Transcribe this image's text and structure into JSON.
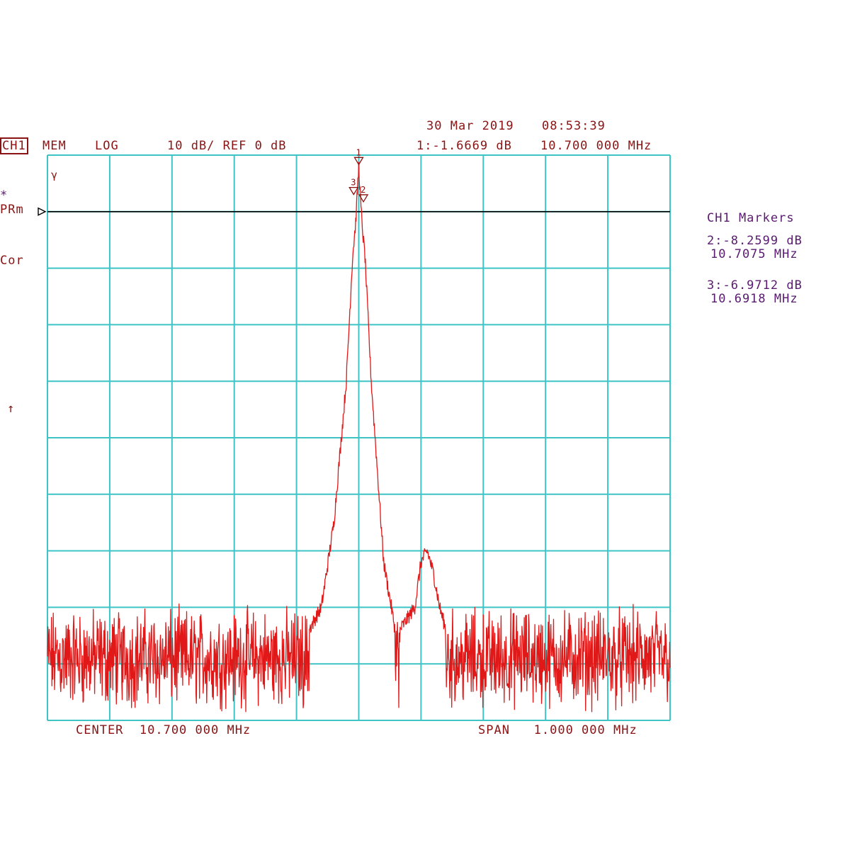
{
  "header": {
    "date": "30 Mar 2019",
    "time": "08:53:39",
    "channel": "CH1",
    "mode": "MEM",
    "scale_type": "LOG",
    "scale": "10 dB/ REF 0 dB",
    "marker1_readout": "1:-1.6669 dB",
    "marker1_freq": "10.700 000 MHz"
  },
  "side_left": {
    "asterisk": "*",
    "prm": "PRm",
    "cor": "Cor",
    "arrow": "↑",
    "gamma": "γ"
  },
  "markers_panel": {
    "title": "CH1 Markers",
    "m2_value": "2:-8.2599 dB",
    "m2_freq": "10.7075 MHz",
    "m3_value": "3:-6.9712 dB",
    "m3_freq": "10.6918 MHz"
  },
  "footer": {
    "center": "CENTER  10.700 000 MHz",
    "span": "SPAN   1.000 000 MHz"
  },
  "colors": {
    "grid": "#3ec4c4",
    "trace": "#e01818",
    "trace_dark": "#8a1010",
    "ref_line": "#000000",
    "text_dark": "#8a1414",
    "text_purple": "#5a1a70"
  },
  "chart_data": {
    "type": "line",
    "x_unit": "MHz",
    "y_unit": "dB",
    "xlim": [
      10.2,
      11.2
    ],
    "ylim": [
      -100,
      0
    ],
    "reference_level_db": 0,
    "scale_db_per_div": 10,
    "divisions": {
      "x": 10,
      "y": 10
    },
    "grid": true,
    "reference_line_db": -10,
    "noise_floor_db": [
      -95,
      -83
    ],
    "series": [
      {
        "x": [
          10.2,
          10.6,
          10.64,
          10.66,
          10.68,
          10.69,
          10.695,
          10.7,
          10.705,
          10.71,
          10.72,
          10.74,
          10.76,
          10.79,
          10.8,
          10.81,
          10.82,
          10.83,
          10.85,
          11.2
        ],
        "y": [
          -88,
          -88,
          -80,
          -65,
          -40,
          -18,
          -12,
          -2,
          -12,
          -18,
          -40,
          -72,
          -85,
          -80,
          -72,
          -70,
          -74,
          -80,
          -88,
          -88
        ]
      }
    ],
    "markers": [
      {
        "label": "1",
        "x": 10.7,
        "y": -1.6669
      },
      {
        "label": "2",
        "x": 10.7075,
        "y": -8.2599
      },
      {
        "label": "3",
        "x": 10.6918,
        "y": -6.9712
      }
    ]
  }
}
